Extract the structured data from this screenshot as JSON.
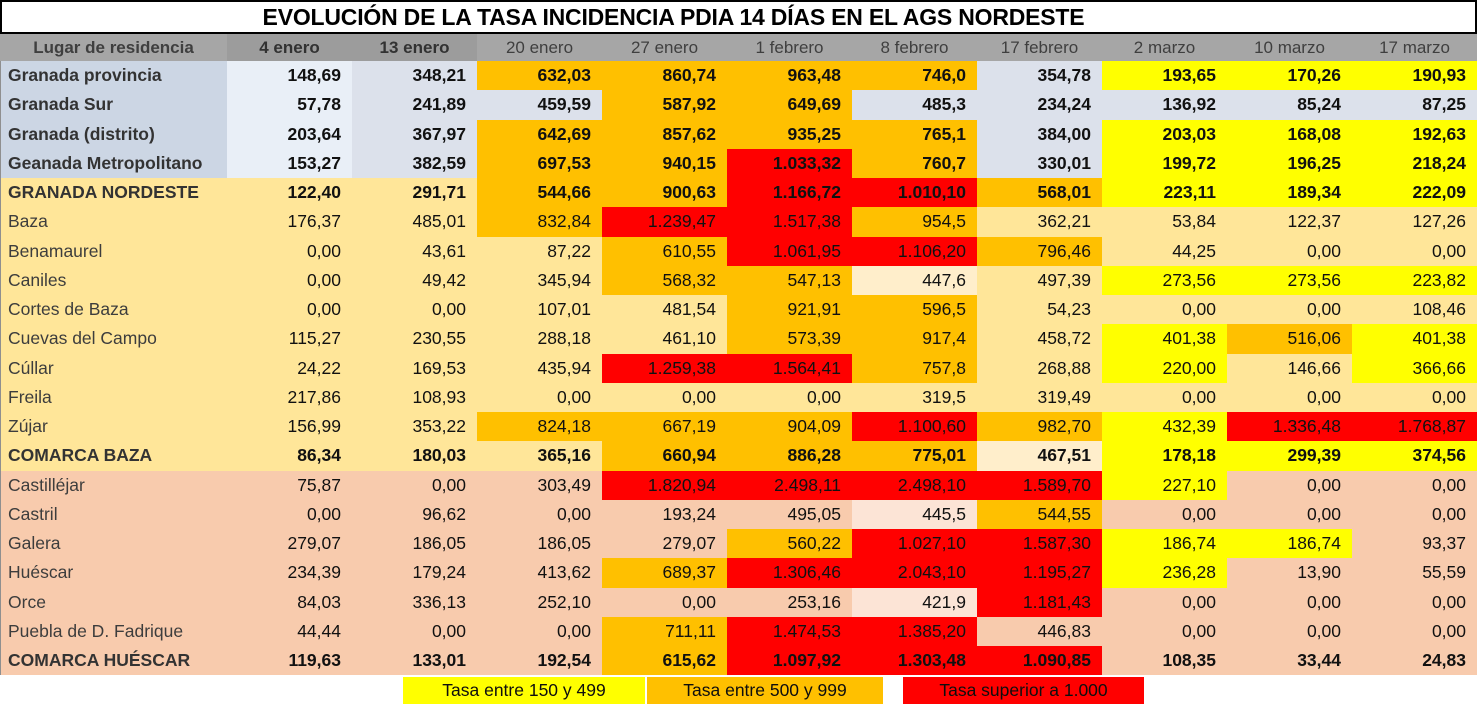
{
  "title": "EVOLUCIÓN DE LA TASA INCIDENCIA PDIA 14 DÍAS EN EL AGS NORDESTE",
  "columns": [
    "Lugar de residencia",
    "4 enero",
    "13 enero",
    "20 enero",
    "27 enero",
    "1 febrero",
    "8 febrero",
    "17 febrero",
    "2 marzo",
    "10 marzo",
    "17 marzo"
  ],
  "colors": {
    "Y": "#ffff00",
    "O": "#ffc000",
    "R": "#ff0000",
    "T": "#ffe699",
    "CR": "#ffeecb",
    "S": "#f8cbad",
    "LS": "#fce4d6",
    "GL": "#ccd6e4",
    "B1": "#e9eff7",
    "B2": "#dce1eb"
  },
  "group_label_colors": {
    "granada": "GL",
    "baza": "T",
    "huescar": "S"
  },
  "rows": [
    {
      "label": "Granada provincia",
      "bold": true,
      "group": "granada",
      "cells": [
        [
          "148,69",
          "B1"
        ],
        [
          "348,21",
          "B2"
        ],
        [
          "632,03",
          "O"
        ],
        [
          "860,74",
          "O"
        ],
        [
          "963,48",
          "O"
        ],
        [
          "746,0",
          "O"
        ],
        [
          "354,78",
          "B2"
        ],
        [
          "193,65",
          "Y"
        ],
        [
          "170,26",
          "Y"
        ],
        [
          "190,93",
          "Y"
        ]
      ]
    },
    {
      "label": "Granada Sur",
      "bold": true,
      "group": "granada",
      "cells": [
        [
          "57,78",
          "B1"
        ],
        [
          "241,89",
          "B2"
        ],
        [
          "459,59",
          "B2"
        ],
        [
          "587,92",
          "O"
        ],
        [
          "649,69",
          "O"
        ],
        [
          "485,3",
          "B2"
        ],
        [
          "234,24",
          "B2"
        ],
        [
          "136,92",
          "B2"
        ],
        [
          "85,24",
          "B2"
        ],
        [
          "87,25",
          "B2"
        ]
      ]
    },
    {
      "label": "Granada (distrito)",
      "bold": true,
      "group": "granada",
      "cells": [
        [
          "203,64",
          "B1"
        ],
        [
          "367,97",
          "B2"
        ],
        [
          "642,69",
          "O"
        ],
        [
          "857,62",
          "O"
        ],
        [
          "935,25",
          "O"
        ],
        [
          "765,1",
          "O"
        ],
        [
          "384,00",
          "B2"
        ],
        [
          "203,03",
          "Y"
        ],
        [
          "168,08",
          "Y"
        ],
        [
          "192,63",
          "Y"
        ]
      ]
    },
    {
      "label": "Geanada Metropolitano",
      "bold": true,
      "group": "granada",
      "cells": [
        [
          "153,27",
          "B1"
        ],
        [
          "382,59",
          "B2"
        ],
        [
          "697,53",
          "O"
        ],
        [
          "940,15",
          "O"
        ],
        [
          "1.033,32",
          "R"
        ],
        [
          "760,7",
          "O"
        ],
        [
          "330,01",
          "B2"
        ],
        [
          "199,72",
          "Y"
        ],
        [
          "196,25",
          "Y"
        ],
        [
          "218,24",
          "Y"
        ]
      ]
    },
    {
      "label": "GRANADA NORDESTE",
      "bold": true,
      "group": "baza",
      "cells": [
        [
          "122,40",
          "T"
        ],
        [
          "291,71",
          "T"
        ],
        [
          "544,66",
          "O"
        ],
        [
          "900,63",
          "O"
        ],
        [
          "1.166,72",
          "R"
        ],
        [
          "1.010,10",
          "R"
        ],
        [
          "568,01",
          "O"
        ],
        [
          "223,11",
          "Y"
        ],
        [
          "189,34",
          "Y"
        ],
        [
          "222,09",
          "Y"
        ]
      ]
    },
    {
      "label": "Baza",
      "bold": false,
      "group": "baza",
      "cells": [
        [
          "176,37",
          "T"
        ],
        [
          "485,01",
          "T"
        ],
        [
          "832,84",
          "O"
        ],
        [
          "1.239,47",
          "R"
        ],
        [
          "1.517,38",
          "R"
        ],
        [
          "954,5",
          "O"
        ],
        [
          "362,21",
          "T"
        ],
        [
          "53,84",
          "T"
        ],
        [
          "122,37",
          "T"
        ],
        [
          "127,26",
          "T"
        ]
      ]
    },
    {
      "label": "Benamaurel",
      "bold": false,
      "group": "baza",
      "cells": [
        [
          "0,00",
          "T"
        ],
        [
          "43,61",
          "T"
        ],
        [
          "87,22",
          "T"
        ],
        [
          "610,55",
          "O"
        ],
        [
          "1.061,95",
          "R"
        ],
        [
          "1.106,20",
          "R"
        ],
        [
          "796,46",
          "O"
        ],
        [
          "44,25",
          "T"
        ],
        [
          "0,00",
          "T"
        ],
        [
          "0,00",
          "T"
        ]
      ]
    },
    {
      "label": "Caniles",
      "bold": false,
      "group": "baza",
      "cells": [
        [
          "0,00",
          "T"
        ],
        [
          "49,42",
          "T"
        ],
        [
          "345,94",
          "T"
        ],
        [
          "568,32",
          "O"
        ],
        [
          "547,13",
          "O"
        ],
        [
          "447,6",
          "CR"
        ],
        [
          "497,39",
          "T"
        ],
        [
          "273,56",
          "Y"
        ],
        [
          "273,56",
          "Y"
        ],
        [
          "223,82",
          "Y"
        ]
      ]
    },
    {
      "label": "Cortes de Baza",
      "bold": false,
      "group": "baza",
      "cells": [
        [
          "0,00",
          "T"
        ],
        [
          "0,00",
          "T"
        ],
        [
          "107,01",
          "T"
        ],
        [
          "481,54",
          "T"
        ],
        [
          "921,91",
          "O"
        ],
        [
          "596,5",
          "O"
        ],
        [
          "54,23",
          "T"
        ],
        [
          "0,00",
          "T"
        ],
        [
          "0,00",
          "T"
        ],
        [
          "108,46",
          "T"
        ]
      ]
    },
    {
      "label": "Cuevas del Campo",
      "bold": false,
      "group": "baza",
      "cells": [
        [
          "115,27",
          "T"
        ],
        [
          "230,55",
          "T"
        ],
        [
          "288,18",
          "T"
        ],
        [
          "461,10",
          "T"
        ],
        [
          "573,39",
          "O"
        ],
        [
          "917,4",
          "O"
        ],
        [
          "458,72",
          "T"
        ],
        [
          "401,38",
          "Y"
        ],
        [
          "516,06",
          "O"
        ],
        [
          "401,38",
          "Y"
        ]
      ]
    },
    {
      "label": "Cúllar",
      "bold": false,
      "group": "baza",
      "cells": [
        [
          "24,22",
          "T"
        ],
        [
          "169,53",
          "T"
        ],
        [
          "435,94",
          "T"
        ],
        [
          "1.259,38",
          "R"
        ],
        [
          "1.564,41",
          "R"
        ],
        [
          "757,8",
          "O"
        ],
        [
          "268,88",
          "T"
        ],
        [
          "220,00",
          "Y"
        ],
        [
          "146,66",
          "T"
        ],
        [
          "366,66",
          "Y"
        ]
      ]
    },
    {
      "label": "Freila",
      "bold": false,
      "group": "baza",
      "cells": [
        [
          "217,86",
          "T"
        ],
        [
          "108,93",
          "T"
        ],
        [
          "0,00",
          "T"
        ],
        [
          "0,00",
          "T"
        ],
        [
          "0,00",
          "T"
        ],
        [
          "319,5",
          "T"
        ],
        [
          "319,49",
          "T"
        ],
        [
          "0,00",
          "T"
        ],
        [
          "0,00",
          "T"
        ],
        [
          "0,00",
          "T"
        ]
      ]
    },
    {
      "label": "Zújar",
      "bold": false,
      "group": "baza",
      "cells": [
        [
          "156,99",
          "T"
        ],
        [
          "353,22",
          "T"
        ],
        [
          "824,18",
          "O"
        ],
        [
          "667,19",
          "O"
        ],
        [
          "904,09",
          "O"
        ],
        [
          "1.100,60",
          "R"
        ],
        [
          "982,70",
          "O"
        ],
        [
          "432,39",
          "Y"
        ],
        [
          "1.336,48",
          "R"
        ],
        [
          "1.768,87",
          "R"
        ]
      ]
    },
    {
      "label": "COMARCA BAZA",
      "bold": true,
      "group": "baza",
      "cells": [
        [
          "86,34",
          "T"
        ],
        [
          "180,03",
          "T"
        ],
        [
          "365,16",
          "T"
        ],
        [
          "660,94",
          "O"
        ],
        [
          "886,28",
          "O"
        ],
        [
          "775,01",
          "O"
        ],
        [
          "467,51",
          "CR"
        ],
        [
          "178,18",
          "Y"
        ],
        [
          "299,39",
          "Y"
        ],
        [
          "374,56",
          "Y"
        ]
      ]
    },
    {
      "label": "Castilléjar",
      "bold": false,
      "group": "huescar",
      "cells": [
        [
          "75,87",
          "S"
        ],
        [
          "0,00",
          "S"
        ],
        [
          "303,49",
          "S"
        ],
        [
          "1.820,94",
          "R"
        ],
        [
          "2.498,11",
          "R"
        ],
        [
          "2.498,10",
          "R"
        ],
        [
          "1.589,70",
          "R"
        ],
        [
          "227,10",
          "Y"
        ],
        [
          "0,00",
          "S"
        ],
        [
          "0,00",
          "S"
        ]
      ]
    },
    {
      "label": "Castril",
      "bold": false,
      "group": "huescar",
      "cells": [
        [
          "0,00",
          "S"
        ],
        [
          "96,62",
          "S"
        ],
        [
          "0,00",
          "S"
        ],
        [
          "193,24",
          "S"
        ],
        [
          "495,05",
          "S"
        ],
        [
          "445,5",
          "LS"
        ],
        [
          "544,55",
          "O"
        ],
        [
          "0,00",
          "S"
        ],
        [
          "0,00",
          "S"
        ],
        [
          "0,00",
          "S"
        ]
      ]
    },
    {
      "label": "Galera",
      "bold": false,
      "group": "huescar",
      "cells": [
        [
          "279,07",
          "S"
        ],
        [
          "186,05",
          "S"
        ],
        [
          "186,05",
          "S"
        ],
        [
          "279,07",
          "S"
        ],
        [
          "560,22",
          "O"
        ],
        [
          "1.027,10",
          "R"
        ],
        [
          "1.587,30",
          "R"
        ],
        [
          "186,74",
          "Y"
        ],
        [
          "186,74",
          "Y"
        ],
        [
          "93,37",
          "S"
        ]
      ]
    },
    {
      "label": "Huéscar",
      "bold": false,
      "group": "huescar",
      "cells": [
        [
          "234,39",
          "S"
        ],
        [
          "179,24",
          "S"
        ],
        [
          "413,62",
          "S"
        ],
        [
          "689,37",
          "O"
        ],
        [
          "1.306,46",
          "R"
        ],
        [
          "2.043,10",
          "R"
        ],
        [
          "1.195,27",
          "R"
        ],
        [
          "236,28",
          "Y"
        ],
        [
          "13,90",
          "S"
        ],
        [
          "55,59",
          "S"
        ]
      ]
    },
    {
      "label": "Orce",
      "bold": false,
      "group": "huescar",
      "cells": [
        [
          "84,03",
          "S"
        ],
        [
          "336,13",
          "S"
        ],
        [
          "252,10",
          "S"
        ],
        [
          "0,00",
          "S"
        ],
        [
          "253,16",
          "S"
        ],
        [
          "421,9",
          "LS"
        ],
        [
          "1.181,43",
          "R"
        ],
        [
          "0,00",
          "S"
        ],
        [
          "0,00",
          "S"
        ],
        [
          "0,00",
          "S"
        ]
      ]
    },
    {
      "label": "Puebla de D. Fadrique",
      "bold": false,
      "group": "huescar",
      "cells": [
        [
          "44,44",
          "S"
        ],
        [
          "0,00",
          "S"
        ],
        [
          "0,00",
          "S"
        ],
        [
          "711,11",
          "O"
        ],
        [
          "1.474,53",
          "R"
        ],
        [
          "1.385,20",
          "R"
        ],
        [
          "446,83",
          "S"
        ],
        [
          "0,00",
          "S"
        ],
        [
          "0,00",
          "S"
        ],
        [
          "0,00",
          "S"
        ]
      ]
    },
    {
      "label": "COMARCA HUÉSCAR",
      "bold": true,
      "group": "huescar",
      "cells": [
        [
          "119,63",
          "S"
        ],
        [
          "133,01",
          "S"
        ],
        [
          "192,54",
          "S"
        ],
        [
          "615,62",
          "O"
        ],
        [
          "1.097,92",
          "R"
        ],
        [
          "1.303,48",
          "R"
        ],
        [
          "1.090,85",
          "R"
        ],
        [
          "108,35",
          "S"
        ],
        [
          "33,44",
          "S"
        ],
        [
          "24,83",
          "S"
        ]
      ]
    }
  ],
  "legend": [
    {
      "label": "Tasa entre 150 y 499",
      "color": "#ffff00"
    },
    {
      "label": "Tasa entre 500 y 999",
      "color": "#ffc000"
    },
    {
      "label": "Tasa superior a 1.000",
      "color": "#ff0000"
    }
  ]
}
